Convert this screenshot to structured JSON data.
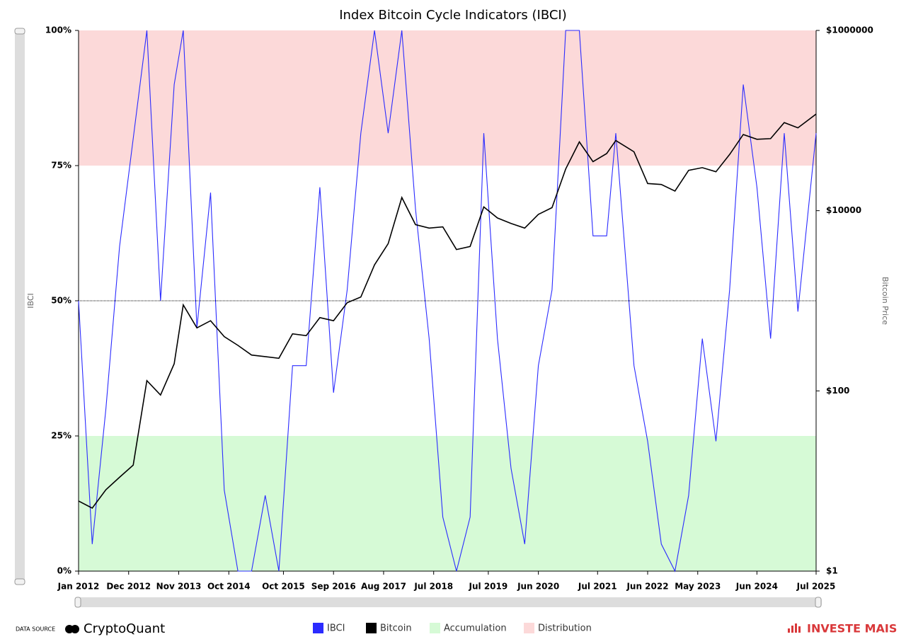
{
  "chart_data": {
    "type": "line",
    "title": "Index Bitcoin Cycle Indicators (IBCI)",
    "y_label": "IBCI",
    "y2_label": "Bitcoin Price",
    "x": [
      "2012-01",
      "2012-04",
      "2012-07",
      "2012-10",
      "2013-01",
      "2013-04",
      "2013-07",
      "2013-10",
      "2013-12",
      "2014-03",
      "2014-06",
      "2014-09",
      "2014-12",
      "2015-03",
      "2015-06",
      "2015-09",
      "2015-12",
      "2016-03",
      "2016-06",
      "2016-09",
      "2016-12",
      "2017-03",
      "2017-06",
      "2017-09",
      "2017-12",
      "2018-03",
      "2018-06",
      "2018-09",
      "2018-12",
      "2019-03",
      "2019-06",
      "2019-09",
      "2019-12",
      "2020-03",
      "2020-06",
      "2020-09",
      "2020-12",
      "2021-03",
      "2021-06",
      "2021-09",
      "2021-11",
      "2022-03",
      "2022-06",
      "2022-09",
      "2022-12",
      "2023-03",
      "2023-06",
      "2023-09",
      "2023-12",
      "2024-03",
      "2024-06",
      "2024-09",
      "2024-12",
      "2025-03",
      "2025-07"
    ],
    "series": [
      {
        "name": "IBCI",
        "color": "#2b2bff",
        "values": [
          50,
          5,
          30,
          60,
          80,
          100,
          50,
          90,
          100,
          45,
          70,
          15,
          0,
          0,
          14,
          0,
          38,
          38,
          71,
          33,
          52,
          81,
          100,
          81,
          100,
          67,
          43,
          10,
          0,
          10,
          81,
          43,
          19,
          5,
          38,
          52,
          100,
          100,
          62,
          62,
          81,
          38,
          24,
          5,
          0,
          14,
          43,
          24,
          52,
          90,
          71,
          43,
          81,
          48,
          81
        ]
      },
      {
        "name": "Bitcoin",
        "color": "#000000",
        "axis": "y2",
        "values": [
          6,
          5,
          8,
          11,
          15,
          130,
          90,
          200,
          900,
          500,
          600,
          400,
          320,
          250,
          240,
          230,
          430,
          410,
          650,
          600,
          950,
          1100,
          2500,
          4300,
          14000,
          7000,
          6400,
          6600,
          3700,
          4000,
          11000,
          8300,
          7200,
          6400,
          9100,
          10800,
          29000,
          58000,
          35000,
          43000,
          60000,
          45000,
          20000,
          19500,
          16500,
          28000,
          30000,
          27000,
          42000,
          70000,
          62000,
          63000,
          95000,
          83000,
          118000
        ]
      }
    ],
    "bands": [
      {
        "name": "Accumulation",
        "from": 0,
        "to": 25,
        "color": "#d6fad6"
      },
      {
        "name": "Distribution",
        "from": 75,
        "to": 100,
        "color": "#fcd9d9"
      }
    ],
    "reference_line": 50,
    "xlim": [
      "2012-01",
      "2025-07"
    ],
    "xticks": [
      {
        "value": "2012-01",
        "label": "Jan 2012"
      },
      {
        "value": "2012-12",
        "label": "Dec 2012"
      },
      {
        "value": "2013-11",
        "label": "Nov 2013"
      },
      {
        "value": "2014-10",
        "label": "Oct 2014"
      },
      {
        "value": "2015-10",
        "label": "Oct 2015"
      },
      {
        "value": "2016-09",
        "label": "Sep 2016"
      },
      {
        "value": "2017-08",
        "label": "Aug 2017"
      },
      {
        "value": "2018-07",
        "label": "Jul 2018"
      },
      {
        "value": "2019-07",
        "label": "Jul 2019"
      },
      {
        "value": "2020-06",
        "label": "Jun 2020"
      },
      {
        "value": "2021-07",
        "label": "Jul 2021"
      },
      {
        "value": "2022-06",
        "label": "Jun 2022"
      },
      {
        "value": "2023-05",
        "label": "May 2023"
      },
      {
        "value": "2024-06",
        "label": "Jun 2024"
      },
      {
        "value": "2025-07",
        "label": "Jul 2025"
      }
    ],
    "ylim": [
      0,
      100
    ],
    "yticks": [
      {
        "value": 0,
        "label": "0%"
      },
      {
        "value": 25,
        "label": "25%"
      },
      {
        "value": 50,
        "label": "50%"
      },
      {
        "value": 75,
        "label": "75%"
      },
      {
        "value": 100,
        "label": "100%"
      }
    ],
    "y2lim": [
      1,
      1000000
    ],
    "y2_log": true,
    "y2ticks": [
      {
        "value": 1,
        "label": "$1"
      },
      {
        "value": 100,
        "label": "$100"
      },
      {
        "value": 10000,
        "label": "$10000"
      },
      {
        "value": 1000000,
        "label": "$1000000"
      }
    ],
    "legend": "bottom",
    "footer": {
      "source_label": "DATA SOURCE",
      "source": "CryptoQuant",
      "brand": "INVESTE MAIS"
    }
  }
}
